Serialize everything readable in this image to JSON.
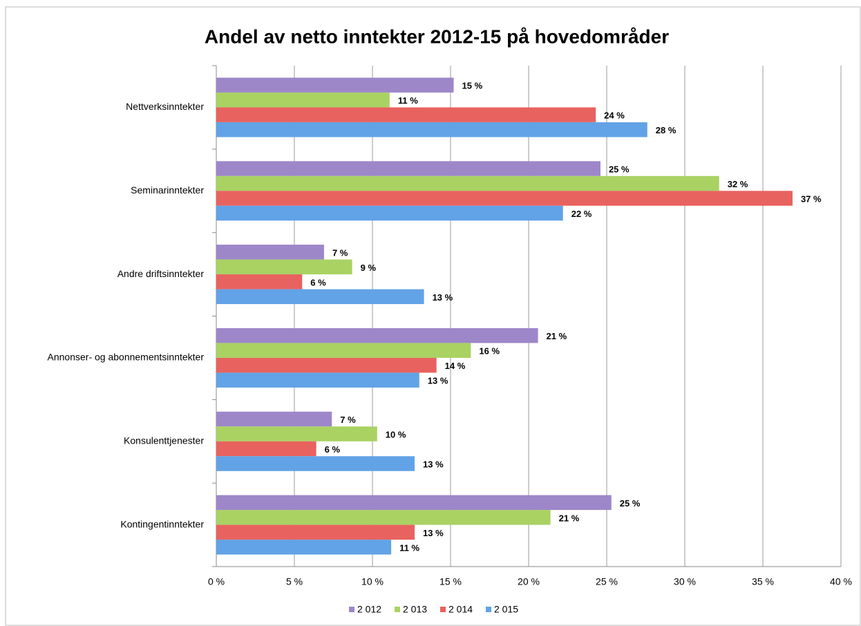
{
  "chart_data": {
    "type": "bar",
    "orientation": "horizontal",
    "title": "Andel av netto inntekter 2012-15 på hovedområder",
    "categories": [
      "Nettverksinntekter",
      "Seminarinntekter",
      "Andre driftsinntekter",
      "Annonser- og abonnementsinntekter",
      "Konsulenttjenester",
      "Kontingentinntekter"
    ],
    "series": [
      {
        "name": "2 012",
        "color": "#9d87c9",
        "values": [
          15.2,
          24.6,
          6.9,
          20.6,
          7.4,
          25.3
        ],
        "value_labels": [
          "15 %",
          "25 %",
          "7 %",
          "21 %",
          "7 %",
          "25 %"
        ]
      },
      {
        "name": "2 013",
        "color": "#a9d263",
        "values": [
          11.1,
          32.2,
          8.7,
          16.3,
          10.3,
          21.4
        ],
        "value_labels": [
          "11 %",
          "32 %",
          "9 %",
          "16 %",
          "10 %",
          "21 %"
        ]
      },
      {
        "name": "2 014",
        "color": "#e8625f",
        "values": [
          24.3,
          36.9,
          5.5,
          14.1,
          6.4,
          12.7
        ],
        "value_labels": [
          "24 %",
          "37 %",
          "6 %",
          "14 %",
          "6 %",
          "13 %"
        ]
      },
      {
        "name": "2 015",
        "color": "#62a2e6",
        "values": [
          27.6,
          22.2,
          13.3,
          13.0,
          12.7,
          11.2
        ],
        "value_labels": [
          "28 %",
          "22 %",
          "13 %",
          "13 %",
          "13 %",
          "11 %"
        ]
      }
    ],
    "xlim": [
      0,
      40
    ],
    "xticks": [
      {
        "value": 0,
        "label": "0 %"
      },
      {
        "value": 5,
        "label": "5 %"
      },
      {
        "value": 10,
        "label": "10 %"
      },
      {
        "value": 15,
        "label": "15 %"
      },
      {
        "value": 20,
        "label": "20 %"
      },
      {
        "value": 25,
        "label": "25 %"
      },
      {
        "value": 30,
        "label": "30 %"
      },
      {
        "value": 35,
        "label": "35 %"
      },
      {
        "value": 40,
        "label": "40 %"
      }
    ],
    "grid": true,
    "legend": "bottom"
  }
}
